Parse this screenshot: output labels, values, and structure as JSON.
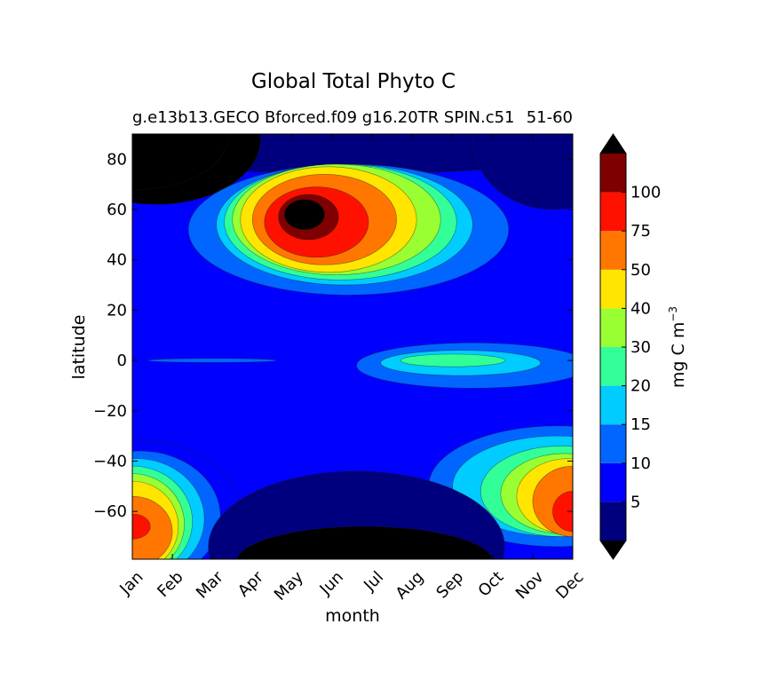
{
  "chart_data": {
    "type": "heatmap",
    "title": "Global Total Phyto C",
    "subtitle_left": "g.e13b13.GECO Bforced.f09 g16.20TR SPIN.c51",
    "subtitle_right": "51-60",
    "xlabel": "month",
    "ylabel": "latitude",
    "x_ticks": [
      "Jan",
      "Feb",
      "Mar",
      "Apr",
      "May",
      "Jun",
      "Jul",
      "Aug",
      "Sep",
      "Oct",
      "Nov",
      "Dec"
    ],
    "y_ticks": [
      80,
      60,
      40,
      20,
      0,
      -20,
      -40,
      -60
    ],
    "xlim": [
      0,
      11
    ],
    "ylim": [
      -79,
      90
    ],
    "colorbar": {
      "label": "mg C m",
      "label_sup": "−3",
      "tick_labels": [
        "5",
        "10",
        "15",
        "20",
        "30",
        "40",
        "50",
        "75",
        "100"
      ],
      "levels": [
        5,
        10,
        15,
        20,
        30,
        40,
        50,
        75,
        100
      ],
      "colors": [
        "#00007f",
        "#0000ff",
        "#0066ff",
        "#00ccff",
        "#33ff99",
        "#99ff33",
        "#ffe500",
        "#ff7700",
        "#ff1100",
        "#7f0000"
      ],
      "under_color": "#000000",
      "over_color": "#000000",
      "extend": "both"
    },
    "features": [
      {
        "region": "north-polar-winter",
        "months": [
          "Jan",
          "Mar"
        ],
        "lat": [
          60,
          90
        ],
        "value": "below 0"
      },
      {
        "region": "north-spring-bloom",
        "months": [
          "Apr",
          "Aug"
        ],
        "lat": [
          30,
          80
        ],
        "peak_value": "above 100",
        "peak_month": "May",
        "peak_lat": 58
      },
      {
        "region": "equatorial-band",
        "months": [
          "Aug",
          "Nov"
        ],
        "lat": [
          -10,
          2
        ],
        "value": "15-30"
      },
      {
        "region": "south-early-bloom",
        "months": [
          "Jan",
          "Mar"
        ],
        "lat": [
          -79,
          -38
        ],
        "peak_value": "75-100",
        "peak_lat": -66
      },
      {
        "region": "south-late-bloom",
        "months": [
          "Sep",
          "Dec"
        ],
        "lat": [
          -75,
          -32
        ],
        "peak_value": "75-100",
        "peak_month": "Dec",
        "peak_lat": -60
      },
      {
        "region": "south-polar-winter",
        "months": [
          "May",
          "Sep"
        ],
        "lat": [
          -79,
          -62
        ],
        "value": "below 0"
      }
    ]
  }
}
